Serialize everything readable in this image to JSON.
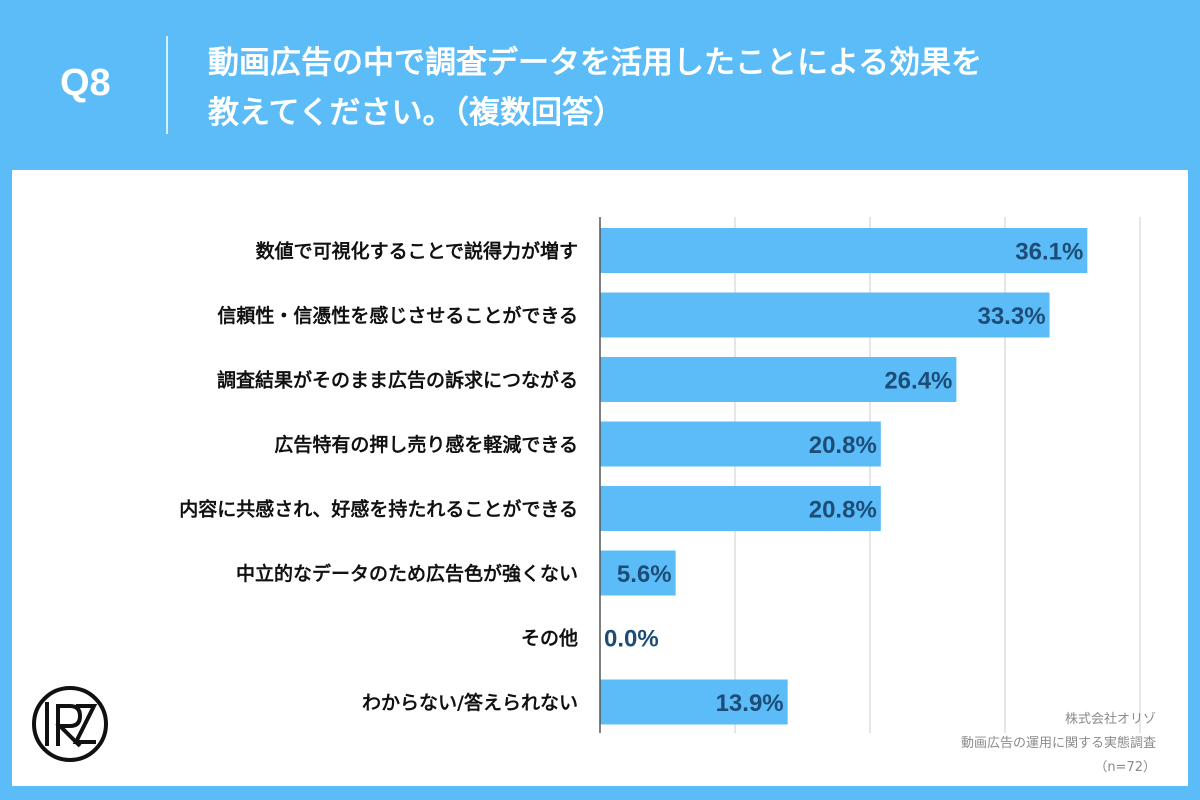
{
  "header": {
    "qnum": "Q8",
    "title_line1": "動画広告の中で調査データを活用したことによる効果を",
    "title_line2": "教えてください。（複数回答）"
  },
  "colors": {
    "background": "#5bbcf7",
    "bar": "#5bbcf7",
    "value_text": "#1d4d77",
    "grid": "#cccccc"
  },
  "chart_data": {
    "type": "bar",
    "orientation": "horizontal",
    "categories": [
      "数値で可視化することで説得力が増す",
      "信頼性・信憑性を感じさせることができる",
      "調査結果がそのまま広告の訴求につながる",
      "広告特有の押し売り感を軽減できる",
      "内容に共感され、好感を持たれることができる",
      "中立的なデータのため広告色が強くない",
      "その他",
      "わからない/答えられない"
    ],
    "values": [
      36.1,
      33.3,
      26.4,
      20.8,
      20.8,
      5.6,
      0.0,
      13.9
    ],
    "value_labels": [
      "36.1%",
      "33.3%",
      "26.4%",
      "20.8%",
      "20.8%",
      "5.6%",
      "0.0%",
      "13.9%"
    ],
    "xlim": [
      0,
      40
    ],
    "grid": true
  },
  "logo": {
    "text": "IRZ",
    "icon": "company-logo-icon"
  },
  "source": {
    "company": "株式会社オリゾ",
    "survey": "動画広告の運用に関する実態調査",
    "n": "（n=72）"
  }
}
